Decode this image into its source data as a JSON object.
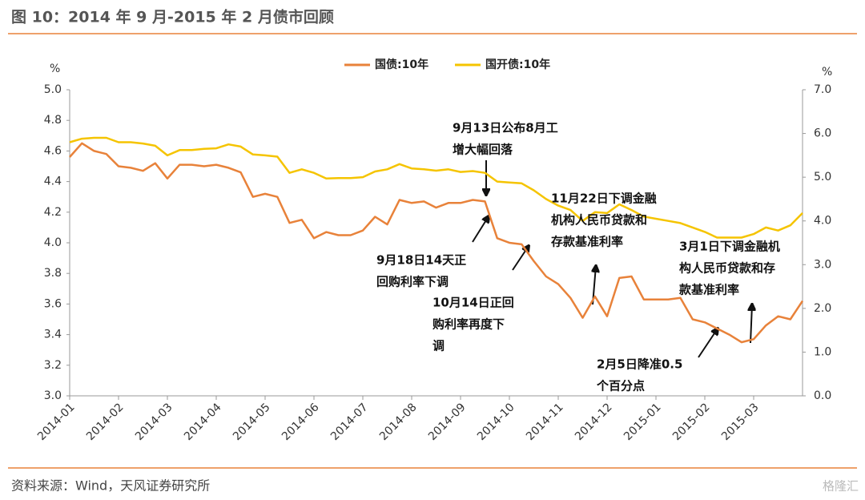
{
  "title": "图 10：2014 年 9 月-2015 年 2 月债市回顾",
  "source": "资料来源：Wind，天风证券研究所",
  "watermark": "格隆汇",
  "chart_data": {
    "type": "line",
    "y_label": "%",
    "y2_label": "%",
    "categories": [
      "2014-01",
      null,
      null,
      null,
      "2014-02",
      null,
      null,
      null,
      "2014-03",
      null,
      null,
      null,
      "2014-04",
      null,
      null,
      null,
      "2014-05",
      null,
      null,
      null,
      "2014-06",
      null,
      null,
      null,
      "2014-07",
      null,
      null,
      null,
      "2014-08",
      null,
      null,
      null,
      "2014-09",
      null,
      null,
      null,
      "2014-10",
      null,
      null,
      null,
      "2014-11",
      null,
      null,
      null,
      "2014-12",
      null,
      null,
      null,
      "2015-01",
      null,
      null,
      null,
      "2015-02",
      null,
      null,
      null,
      "2015-03",
      null,
      null,
      null,
      null
    ],
    "series": [
      {
        "name": "国债:10年",
        "color": "#e8823a",
        "axis": "y",
        "values": [
          4.56,
          4.65,
          4.6,
          4.58,
          4.5,
          4.49,
          4.47,
          4.52,
          4.42,
          4.51,
          4.51,
          4.5,
          4.51,
          4.49,
          4.46,
          4.3,
          4.32,
          4.3,
          4.13,
          4.15,
          4.03,
          4.07,
          4.05,
          4.05,
          4.08,
          4.17,
          4.12,
          4.28,
          4.26,
          4.27,
          4.23,
          4.26,
          4.26,
          4.28,
          4.27,
          4.03,
          4.0,
          3.99,
          3.88,
          3.78,
          3.73,
          3.64,
          3.51,
          3.65,
          3.52,
          3.77,
          3.78,
          3.63,
          3.63,
          3.63,
          3.64,
          3.5,
          3.48,
          3.44,
          3.4,
          3.35,
          3.37,
          3.46,
          3.52,
          3.5,
          3.62
        ]
      },
      {
        "name": "国开债:10年",
        "color": "#f5c400",
        "axis": "y2",
        "values": [
          5.8,
          5.88,
          5.9,
          5.9,
          5.8,
          5.8,
          5.77,
          5.72,
          5.5,
          5.62,
          5.62,
          5.65,
          5.66,
          5.75,
          5.7,
          5.52,
          5.5,
          5.47,
          5.1,
          5.18,
          5.1,
          4.97,
          4.98,
          4.98,
          5.0,
          5.13,
          5.18,
          5.3,
          5.2,
          5.18,
          5.15,
          5.18,
          5.12,
          5.14,
          5.1,
          4.9,
          4.88,
          4.86,
          4.7,
          4.5,
          4.35,
          4.25,
          4.0,
          4.2,
          4.18,
          4.38,
          4.25,
          4.1,
          4.05,
          4.0,
          3.95,
          3.85,
          3.75,
          3.62,
          3.62,
          3.62,
          3.7,
          3.85,
          3.78,
          3.9,
          4.18
        ]
      }
    ],
    "ylim": [
      3.0,
      5.0
    ],
    "yticks": [
      {
        "value": 3.0,
        "label": "3.0"
      },
      {
        "value": 3.2,
        "label": "3.2"
      },
      {
        "value": 3.4,
        "label": "3.4"
      },
      {
        "value": 3.6,
        "label": "3.6"
      },
      {
        "value": 3.8,
        "label": "3.8"
      },
      {
        "value": 4.0,
        "label": "4.0"
      },
      {
        "value": 4.2,
        "label": "4.2"
      },
      {
        "value": 4.4,
        "label": "4.4"
      },
      {
        "value": 4.6,
        "label": "4.6"
      },
      {
        "value": 4.8,
        "label": "4.8"
      },
      {
        "value": 5.0,
        "label": "5.0"
      }
    ],
    "y2lim": [
      0,
      7
    ],
    "y2ticks": [
      {
        "value": 0,
        "label": "0.0"
      },
      {
        "value": 1,
        "label": "1.0"
      },
      {
        "value": 2,
        "label": "2.0"
      },
      {
        "value": 3,
        "label": "3.0"
      },
      {
        "value": 4,
        "label": "4.0"
      },
      {
        "value": 5,
        "label": "5.0"
      },
      {
        "value": 6,
        "label": "6.0"
      },
      {
        "value": 7,
        "label": "7.0"
      }
    ],
    "legend": "top",
    "grid": false,
    "annotations": [
      {
        "lines": [
          "9月13日公布8月工",
          "增大幅回落"
        ]
      },
      {
        "lines": [
          "9月18日14天正",
          "回购利率下调"
        ]
      },
      {
        "lines": [
          "10月14日正回",
          "购利率再度下",
          "调"
        ]
      },
      {
        "lines": [
          "11月22日下调金融",
          "机构人民币贷款和",
          "存款基准利率"
        ]
      },
      {
        "lines": [
          "3月1日下调金融机",
          "构人民币贷款和存",
          "款基准利率"
        ]
      },
      {
        "lines": [
          "2月5日降准0.5",
          "个百分点"
        ]
      }
    ]
  }
}
